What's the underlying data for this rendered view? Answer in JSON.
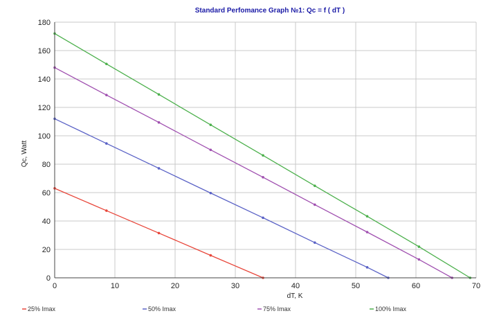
{
  "chart_data": {
    "type": "line",
    "title": "Standard Perfomance Graph №1: Qc = f ( dT )",
    "xlabel": "dT, K",
    "ylabel": "Qc, Watt",
    "xlim": [
      0,
      70
    ],
    "ylim": [
      0,
      180
    ],
    "xticks": [
      0,
      10,
      20,
      30,
      40,
      50,
      60,
      70
    ],
    "yticks": [
      0,
      20,
      40,
      60,
      80,
      100,
      120,
      140,
      160,
      180
    ],
    "grid": true,
    "legend_position": "bottom",
    "series": [
      {
        "name": "25% Imax",
        "color": "#e8463a",
        "x": [
          0,
          8.6,
          17.3,
          25.9,
          34.6
        ],
        "y": [
          63,
          47.3,
          31.5,
          15.8,
          0
        ]
      },
      {
        "name": "50% Imax",
        "color": "#5a62c6",
        "x": [
          0,
          8.6,
          17.3,
          25.9,
          34.6,
          43.2,
          51.9,
          55.4
        ],
        "y": [
          112,
          94.6,
          77.1,
          59.7,
          42.3,
          24.8,
          7.4,
          0
        ]
      },
      {
        "name": "75% Imax",
        "color": "#a050b0",
        "x": [
          0,
          8.6,
          17.3,
          25.9,
          34.6,
          43.2,
          51.9,
          60.5,
          66
        ],
        "y": [
          148,
          128.7,
          109.4,
          90.1,
          70.8,
          51.5,
          32.2,
          12.9,
          0
        ]
      },
      {
        "name": "100% Imax",
        "color": "#4cb04c",
        "x": [
          0,
          8.6,
          17.3,
          25.9,
          34.6,
          43.2,
          51.9,
          60.5,
          69
        ],
        "y": [
          172,
          150.6,
          129.1,
          107.7,
          86.2,
          64.8,
          43.3,
          21.9,
          0
        ]
      }
    ]
  }
}
